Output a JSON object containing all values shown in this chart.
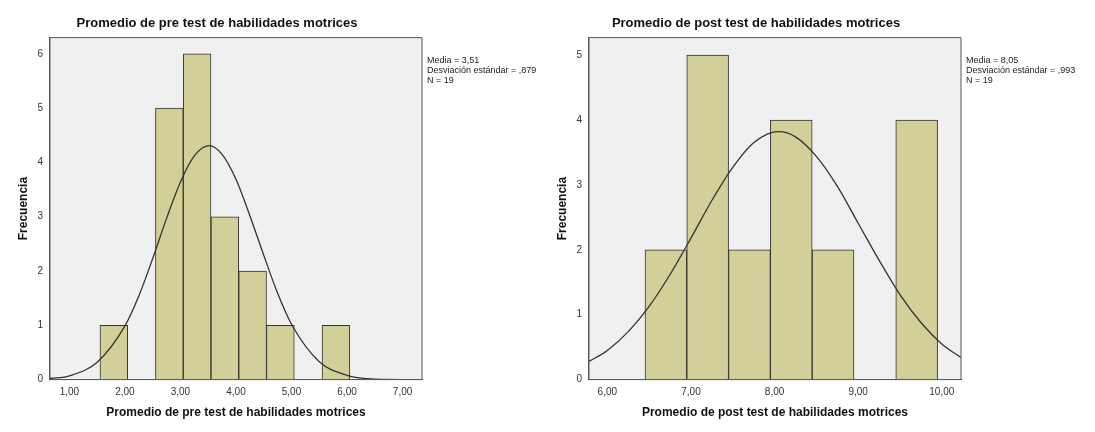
{
  "chart_data": [
    {
      "type": "histogram",
      "title": "Promedio de pre test de habilidades motrices",
      "xlabel": "Promedio de pre test de habilidades motrices",
      "ylabel": "Frecuencia",
      "bins": [
        1.55,
        2.05,
        2.55,
        3.05,
        3.55,
        4.05,
        4.55,
        5.05,
        5.55,
        6.05
      ],
      "values": [
        1,
        0,
        5,
        6,
        3,
        2,
        1,
        0,
        1
      ],
      "color": "#d3cf98",
      "xlim": [
        0.65,
        7.35
      ],
      "xticks": [
        {
          "value": 1,
          "label": "1,00"
        },
        {
          "value": 2,
          "label": "2,00"
        },
        {
          "value": 3,
          "label": "3,00"
        },
        {
          "value": 4,
          "label": "4,00"
        },
        {
          "value": 5,
          "label": "5,00"
        },
        {
          "value": 6,
          "label": "6,00"
        },
        {
          "value": 7,
          "label": "7,00"
        }
      ],
      "ylim": [
        0,
        6.3
      ],
      "yticks": [
        0,
        1,
        2,
        3,
        4,
        5,
        6
      ],
      "grid": false,
      "annotations": [
        "Media = 3,51",
        "Desviación estándar = ,879",
        "N = 19"
      ],
      "series": [
        {
          "type": "line",
          "color": "#333333",
          "marker": "none",
          "x": [
            0.65,
            1.0,
            1.5,
            2.0,
            2.25,
            2.5,
            2.75,
            3.0,
            3.25,
            3.51,
            3.75,
            4.0,
            4.25,
            4.5,
            4.75,
            5.0,
            5.5,
            6.0,
            6.5,
            7.35
          ],
          "values": [
            0.02,
            0.07,
            0.32,
            0.99,
            1.54,
            2.23,
            2.97,
            3.64,
            4.12,
            4.31,
            4.15,
            3.69,
            3.02,
            2.29,
            1.59,
            1.02,
            0.33,
            0.08,
            0.01,
            0
          ]
        }
      ]
    },
    {
      "type": "histogram",
      "title": "Promedio de post test de habilidades motrices",
      "xlabel": "Promedio de post test de habilidades motrices",
      "ylabel": "Frecuencia",
      "bins": [
        6.45,
        6.95,
        7.45,
        7.95,
        8.45,
        8.95,
        9.45,
        9.95
      ],
      "values": [
        2,
        5,
        2,
        4,
        2,
        0,
        4
      ],
      "color": "#d3cf98",
      "xlim": [
        5.78,
        10.23
      ],
      "xticks": [
        {
          "value": 6,
          "label": "6,00"
        },
        {
          "value": 7,
          "label": "7,00"
        },
        {
          "value": 8,
          "label": "8,00"
        },
        {
          "value": 9,
          "label": "9,00"
        },
        {
          "value": 10,
          "label": "10,00"
        }
      ],
      "ylim": [
        0,
        5.27
      ],
      "yticks": [
        0,
        1,
        2,
        3,
        4,
        5
      ],
      "grid": false,
      "annotations": [
        "Media = 8,05",
        "Desviación estándar = ,993",
        "N = 19"
      ],
      "series": [
        {
          "type": "line",
          "color": "#333333",
          "marker": "none",
          "x": [
            5.78,
            6.0,
            6.25,
            6.5,
            6.75,
            7.0,
            7.25,
            7.5,
            7.75,
            8.05,
            8.25,
            8.5,
            8.75,
            9.0,
            9.25,
            9.5,
            9.75,
            10.0,
            10.23
          ],
          "values": [
            0.28,
            0.45,
            0.74,
            1.13,
            1.62,
            2.18,
            2.76,
            3.27,
            3.65,
            3.82,
            3.74,
            3.44,
            2.98,
            2.41,
            1.84,
            1.31,
            0.88,
            0.55,
            0.34
          ]
        }
      ]
    }
  ]
}
